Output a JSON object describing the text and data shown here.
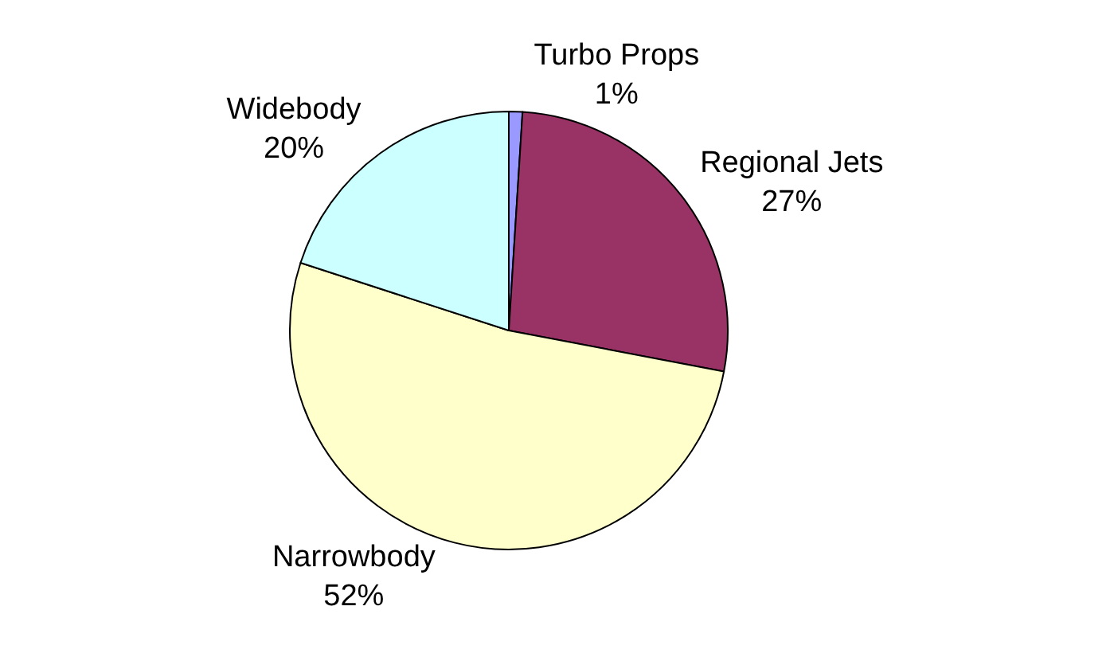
{
  "chart_data": {
    "type": "pie",
    "categories": [
      "Turbo Props",
      "Regional Jets",
      "Narrowbody",
      "Widebody"
    ],
    "values": [
      1,
      27,
      52,
      20
    ],
    "value_labels": [
      "1%",
      "27%",
      "52%",
      "20%"
    ],
    "colors": [
      "#9999ff",
      "#993366",
      "#ffffcc",
      "#ccffff"
    ],
    "legend": false
  }
}
